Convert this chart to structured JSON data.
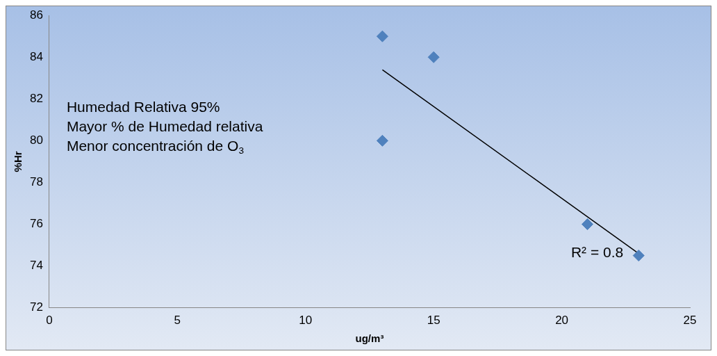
{
  "chart_data": {
    "type": "scatter",
    "xlabel": "ug/m³",
    "ylabel": "%Hr",
    "xlim": [
      0,
      25
    ],
    "ylim": [
      72,
      86
    ],
    "xticks": [
      0,
      5,
      10,
      15,
      20,
      25
    ],
    "yticks": [
      72,
      74,
      76,
      78,
      80,
      82,
      84,
      86
    ],
    "series": [
      {
        "type": "scatter",
        "color": "#4f81bd",
        "marker": "diamond",
        "x": [
          13,
          15,
          13,
          21,
          23
        ],
        "values": [
          85,
          84,
          80,
          76,
          74.5
        ]
      },
      {
        "type": "line",
        "color": "#000000",
        "x": [
          13,
          23
        ],
        "values": [
          83.4,
          74.6
        ]
      }
    ],
    "annotations": [
      "Humedad Relativa 95%",
      "Mayor % de Humedad relativa",
      "Menor concentración de O$_{3}$",
      "R² = 0.8"
    ]
  }
}
